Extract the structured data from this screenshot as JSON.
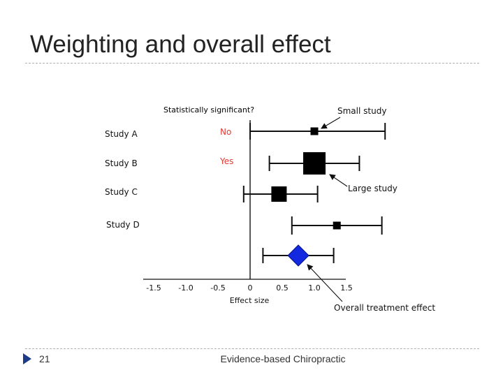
{
  "slide": {
    "title": "Weighting and overall effect",
    "page_number": "21",
    "footer": "Evidence-based Chiropractic"
  },
  "colors": {
    "accent_red": "#e53935",
    "diamond_blue": "#1428e0",
    "marker_bullet": "#1f3c88"
  },
  "chart_data": {
    "type": "forest",
    "xlabel": "Effect size",
    "x_ticks": [
      "-1.5",
      "-1.0",
      "-0.5",
      "0",
      "0.5",
      "1.0",
      "1.5"
    ],
    "significance_header": "Statistically significant?",
    "studies": [
      {
        "name": "Study A",
        "estimate": 1.0,
        "ci_low": 0.0,
        "ci_high": 2.1,
        "significant": "No",
        "weight": "small"
      },
      {
        "name": "Study B",
        "estimate": 1.0,
        "ci_low": 0.3,
        "ci_high": 1.7,
        "significant": "Yes",
        "weight": "large"
      },
      {
        "name": "Study C",
        "estimate": 0.45,
        "ci_low": -0.1,
        "ci_high": 1.05,
        "significant": "",
        "weight": "medium"
      },
      {
        "name": "Study D",
        "estimate": 1.35,
        "ci_low": 0.65,
        "ci_high": 2.05,
        "significant": "",
        "weight": "small"
      }
    ],
    "overall": {
      "estimate": 0.75,
      "ci_low": 0.2,
      "ci_high": 1.3
    },
    "annotations": {
      "small_study": "Small study",
      "large_study": "Large study",
      "overall": "Overall treatment effect"
    }
  }
}
